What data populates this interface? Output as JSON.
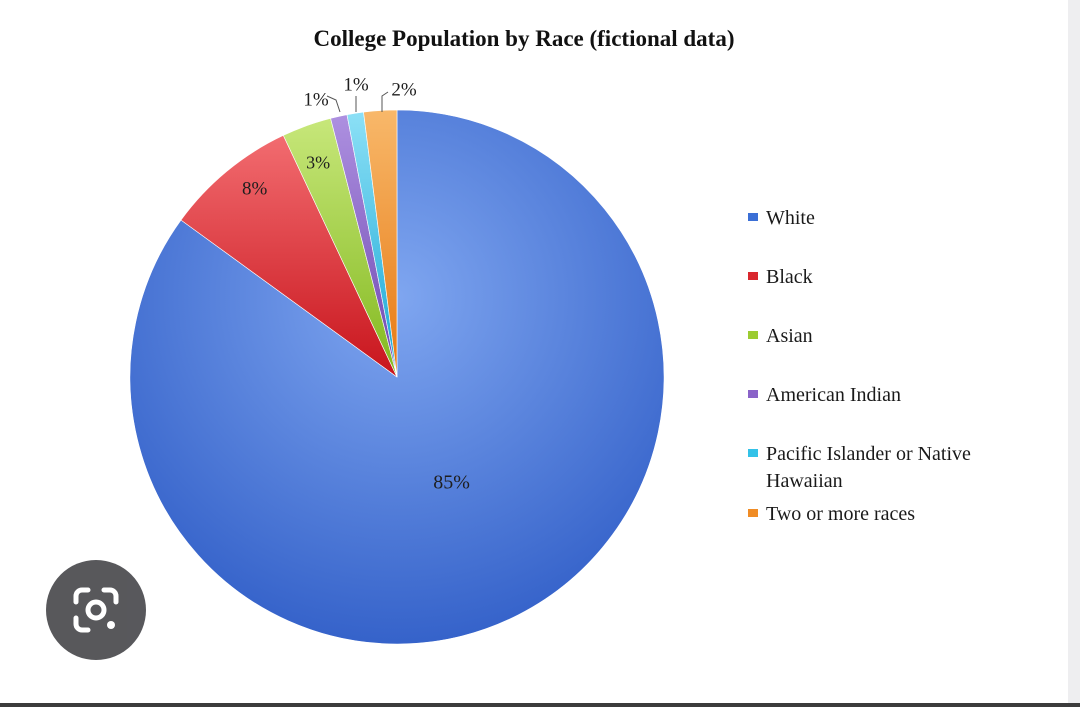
{
  "chart_data": {
    "type": "pie",
    "title": "College Population by Race (fictional data)",
    "slices": [
      {
        "name": "White",
        "value": 85,
        "label": "85%",
        "color": "#3b6fd6"
      },
      {
        "name": "Black",
        "value": 8,
        "label": "8%",
        "color": "#d9272e"
      },
      {
        "name": "Asian",
        "value": 3,
        "label": "3%",
        "color": "#9ccc32"
      },
      {
        "name": "American Indian",
        "value": 1,
        "label": "1%",
        "color": "#8a63c8"
      },
      {
        "name": "Pacific Islander or Native Hawaiian",
        "value": 1,
        "label": "1%",
        "color": "#33c2e8"
      },
      {
        "name": "Two or more races",
        "value": 2,
        "label": "2%",
        "color": "#f08c25"
      }
    ],
    "legend_placement": "right"
  },
  "overlay": {
    "lens_icon": "camera-search-icon"
  }
}
